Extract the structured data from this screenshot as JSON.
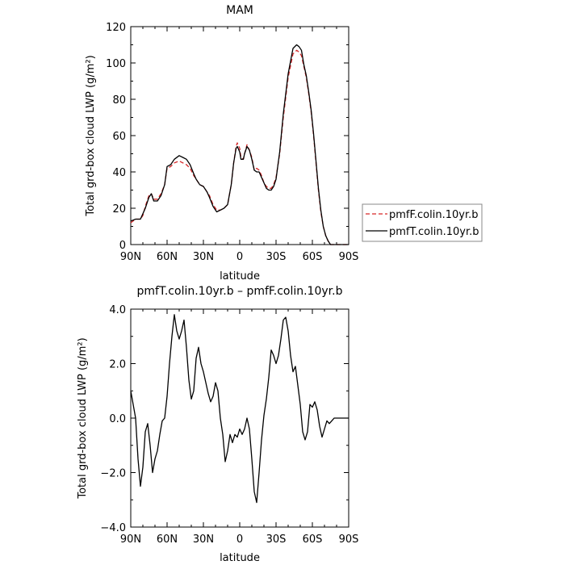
{
  "colors": {
    "axis": "#000000",
    "model_F": "#d62728",
    "model_T": "#000000"
  },
  "chart_data": [
    {
      "type": "line",
      "title": "MAM",
      "xlabel": "latitude",
      "ylabel": "Total grd-box cloud LWP (g/m²)",
      "xlim": [
        90,
        -90
      ],
      "ylim": [
        0,
        120
      ],
      "xticks": [
        90,
        60,
        30,
        0,
        -30,
        -60,
        -90
      ],
      "xtick_labels": [
        "90N",
        "60N",
        "30N",
        "0",
        "30S",
        "60S",
        "90S"
      ],
      "yticks": [
        0,
        20,
        40,
        60,
        80,
        100,
        120
      ],
      "ytick_labels": [
        "0",
        "20",
        "40",
        "60",
        "80",
        "100",
        "120"
      ],
      "grid": false,
      "legend_position": "right",
      "series": [
        {
          "name": "pmfF.colin.10yr.b",
          "style": "dashed",
          "color": "#d62728",
          "x": [
            90,
            86,
            82,
            80,
            78,
            75,
            73,
            71,
            68,
            65,
            62,
            60,
            57,
            54,
            50,
            47,
            44,
            41,
            38,
            36,
            33,
            30,
            27,
            25,
            22,
            19,
            16,
            13,
            10,
            7,
            5,
            3,
            2,
            0,
            -1,
            -3,
            -4,
            -6,
            -8,
            -10,
            -12,
            -14,
            -16,
            -18,
            -20,
            -22,
            -24,
            -26,
            -28,
            -30,
            -33,
            -36,
            -40,
            -44,
            -47,
            -49,
            -51,
            -53,
            -55,
            -57,
            -59,
            -61,
            -63,
            -65,
            -67,
            -69,
            -71,
            -73,
            -75,
            -77,
            -79,
            -81,
            -83,
            -85,
            -87,
            -90
          ],
          "y": [
            12,
            14,
            14,
            16,
            21,
            27,
            28,
            25,
            25,
            28,
            33,
            42,
            43,
            45,
            46,
            45,
            44,
            42,
            38,
            36,
            33,
            32,
            29,
            27,
            22,
            19,
            19,
            20,
            22,
            33,
            45,
            54,
            56,
            53,
            48,
            47,
            50,
            55,
            52,
            48,
            41,
            42,
            41,
            38,
            34,
            32,
            31,
            31,
            33,
            37,
            50,
            70,
            92,
            105,
            107,
            106,
            104,
            98,
            92,
            83,
            73,
            60,
            45,
            30,
            18,
            10,
            5,
            2,
            0,
            0,
            0,
            0,
            0,
            0,
            0,
            0
          ]
        },
        {
          "name": "pmfT.colin.10yr.b",
          "style": "solid",
          "color": "#000000",
          "x": [
            90,
            86,
            82,
            80,
            78,
            75,
            73,
            71,
            68,
            65,
            62,
            60,
            57,
            54,
            50,
            47,
            44,
            41,
            38,
            36,
            33,
            30,
            27,
            25,
            22,
            19,
            16,
            13,
            10,
            7,
            5,
            3,
            2,
            0,
            -1,
            -3,
            -4,
            -6,
            -8,
            -10,
            -12,
            -14,
            -16,
            -18,
            -20,
            -22,
            -24,
            -26,
            -28,
            -30,
            -33,
            -36,
            -40,
            -44,
            -47,
            -49,
            -51,
            -53,
            -55,
            -57,
            -59,
            -61,
            -63,
            -65,
            -67,
            -69,
            -71,
            -73,
            -75,
            -77,
            -79,
            -81,
            -83,
            -85,
            -87,
            -90
          ],
          "y": [
            13,
            14,
            14,
            17,
            20,
            26,
            28,
            24,
            24,
            27,
            33,
            43,
            44,
            47,
            49,
            48,
            47,
            44,
            39,
            36,
            33,
            32,
            29,
            26,
            21,
            18,
            19,
            20,
            22,
            33,
            45,
            53,
            54,
            51,
            47,
            47,
            50,
            54,
            52,
            47,
            41,
            40,
            40,
            37,
            34,
            31,
            30,
            30,
            32,
            36,
            51,
            72,
            94,
            108,
            110,
            109,
            107,
            99,
            93,
            84,
            74,
            61,
            46,
            31,
            19,
            10,
            5,
            2,
            0,
            0,
            0,
            0,
            0,
            0,
            0,
            0
          ]
        }
      ]
    },
    {
      "type": "line",
      "title": "pmfT.colin.10yr.b – pmfF.colin.10yr.b",
      "xlabel": "latitude",
      "ylabel": "Total grd-box cloud LWP (g/m²)",
      "xlim": [
        90,
        -90
      ],
      "ylim": [
        -4,
        4
      ],
      "xticks": [
        90,
        60,
        30,
        0,
        -30,
        -60,
        -90
      ],
      "xtick_labels": [
        "90N",
        "60N",
        "30N",
        "0",
        "30S",
        "60S",
        "90S"
      ],
      "yticks": [
        -4,
        -2,
        0,
        2,
        4
      ],
      "ytick_labels": [
        "−4.0",
        "−2.0",
        "0.0",
        "2.0",
        "4.0"
      ],
      "grid": false,
      "series": [
        {
          "style": "solid",
          "color": "#000000",
          "x": [
            90,
            88,
            86,
            84,
            82,
            80,
            78,
            76,
            74,
            72,
            70,
            68,
            66,
            64,
            62,
            60,
            58,
            56,
            54,
            52,
            50,
            48,
            46,
            44,
            42,
            40,
            38,
            36,
            34,
            32,
            30,
            28,
            26,
            24,
            22,
            20,
            18,
            16,
            14,
            12,
            10,
            8,
            6,
            4,
            2,
            0,
            -2,
            -4,
            -6,
            -8,
            -10,
            -12,
            -14,
            -16,
            -18,
            -20,
            -22,
            -24,
            -26,
            -28,
            -30,
            -32,
            -34,
            -36,
            -38,
            -40,
            -42,
            -44,
            -46,
            -48,
            -50,
            -52,
            -54,
            -56,
            -58,
            -60,
            -62,
            -64,
            -66,
            -68,
            -70,
            -72,
            -74,
            -76,
            -78,
            -80,
            -82,
            -84,
            -86,
            -88,
            -90
          ],
          "y": [
            1.0,
            0.5,
            0.0,
            -1.5,
            -2.5,
            -1.8,
            -0.5,
            -0.2,
            -1.0,
            -2.0,
            -1.5,
            -1.2,
            -0.6,
            -0.1,
            0.0,
            0.8,
            2.0,
            3.0,
            3.8,
            3.2,
            2.9,
            3.2,
            3.6,
            2.6,
            1.4,
            0.7,
            1.0,
            2.2,
            2.6,
            2.0,
            1.7,
            1.3,
            0.9,
            0.6,
            0.8,
            1.3,
            1.0,
            0.0,
            -0.6,
            -1.6,
            -1.2,
            -0.6,
            -0.9,
            -0.6,
            -0.7,
            -0.4,
            -0.6,
            -0.4,
            0.0,
            -0.4,
            -1.5,
            -2.7,
            -3.1,
            -2.0,
            -0.8,
            0.1,
            0.7,
            1.5,
            2.5,
            2.3,
            2.0,
            2.3,
            2.9,
            3.6,
            3.7,
            3.2,
            2.3,
            1.7,
            1.9,
            1.2,
            0.5,
            -0.5,
            -0.8,
            -0.5,
            0.5,
            0.4,
            0.6,
            0.3,
            -0.3,
            -0.7,
            -0.4,
            -0.1,
            -0.2,
            -0.1,
            0.0,
            0.0,
            0.0,
            0.0,
            0.0,
            0.0,
            0.0
          ]
        }
      ]
    }
  ]
}
